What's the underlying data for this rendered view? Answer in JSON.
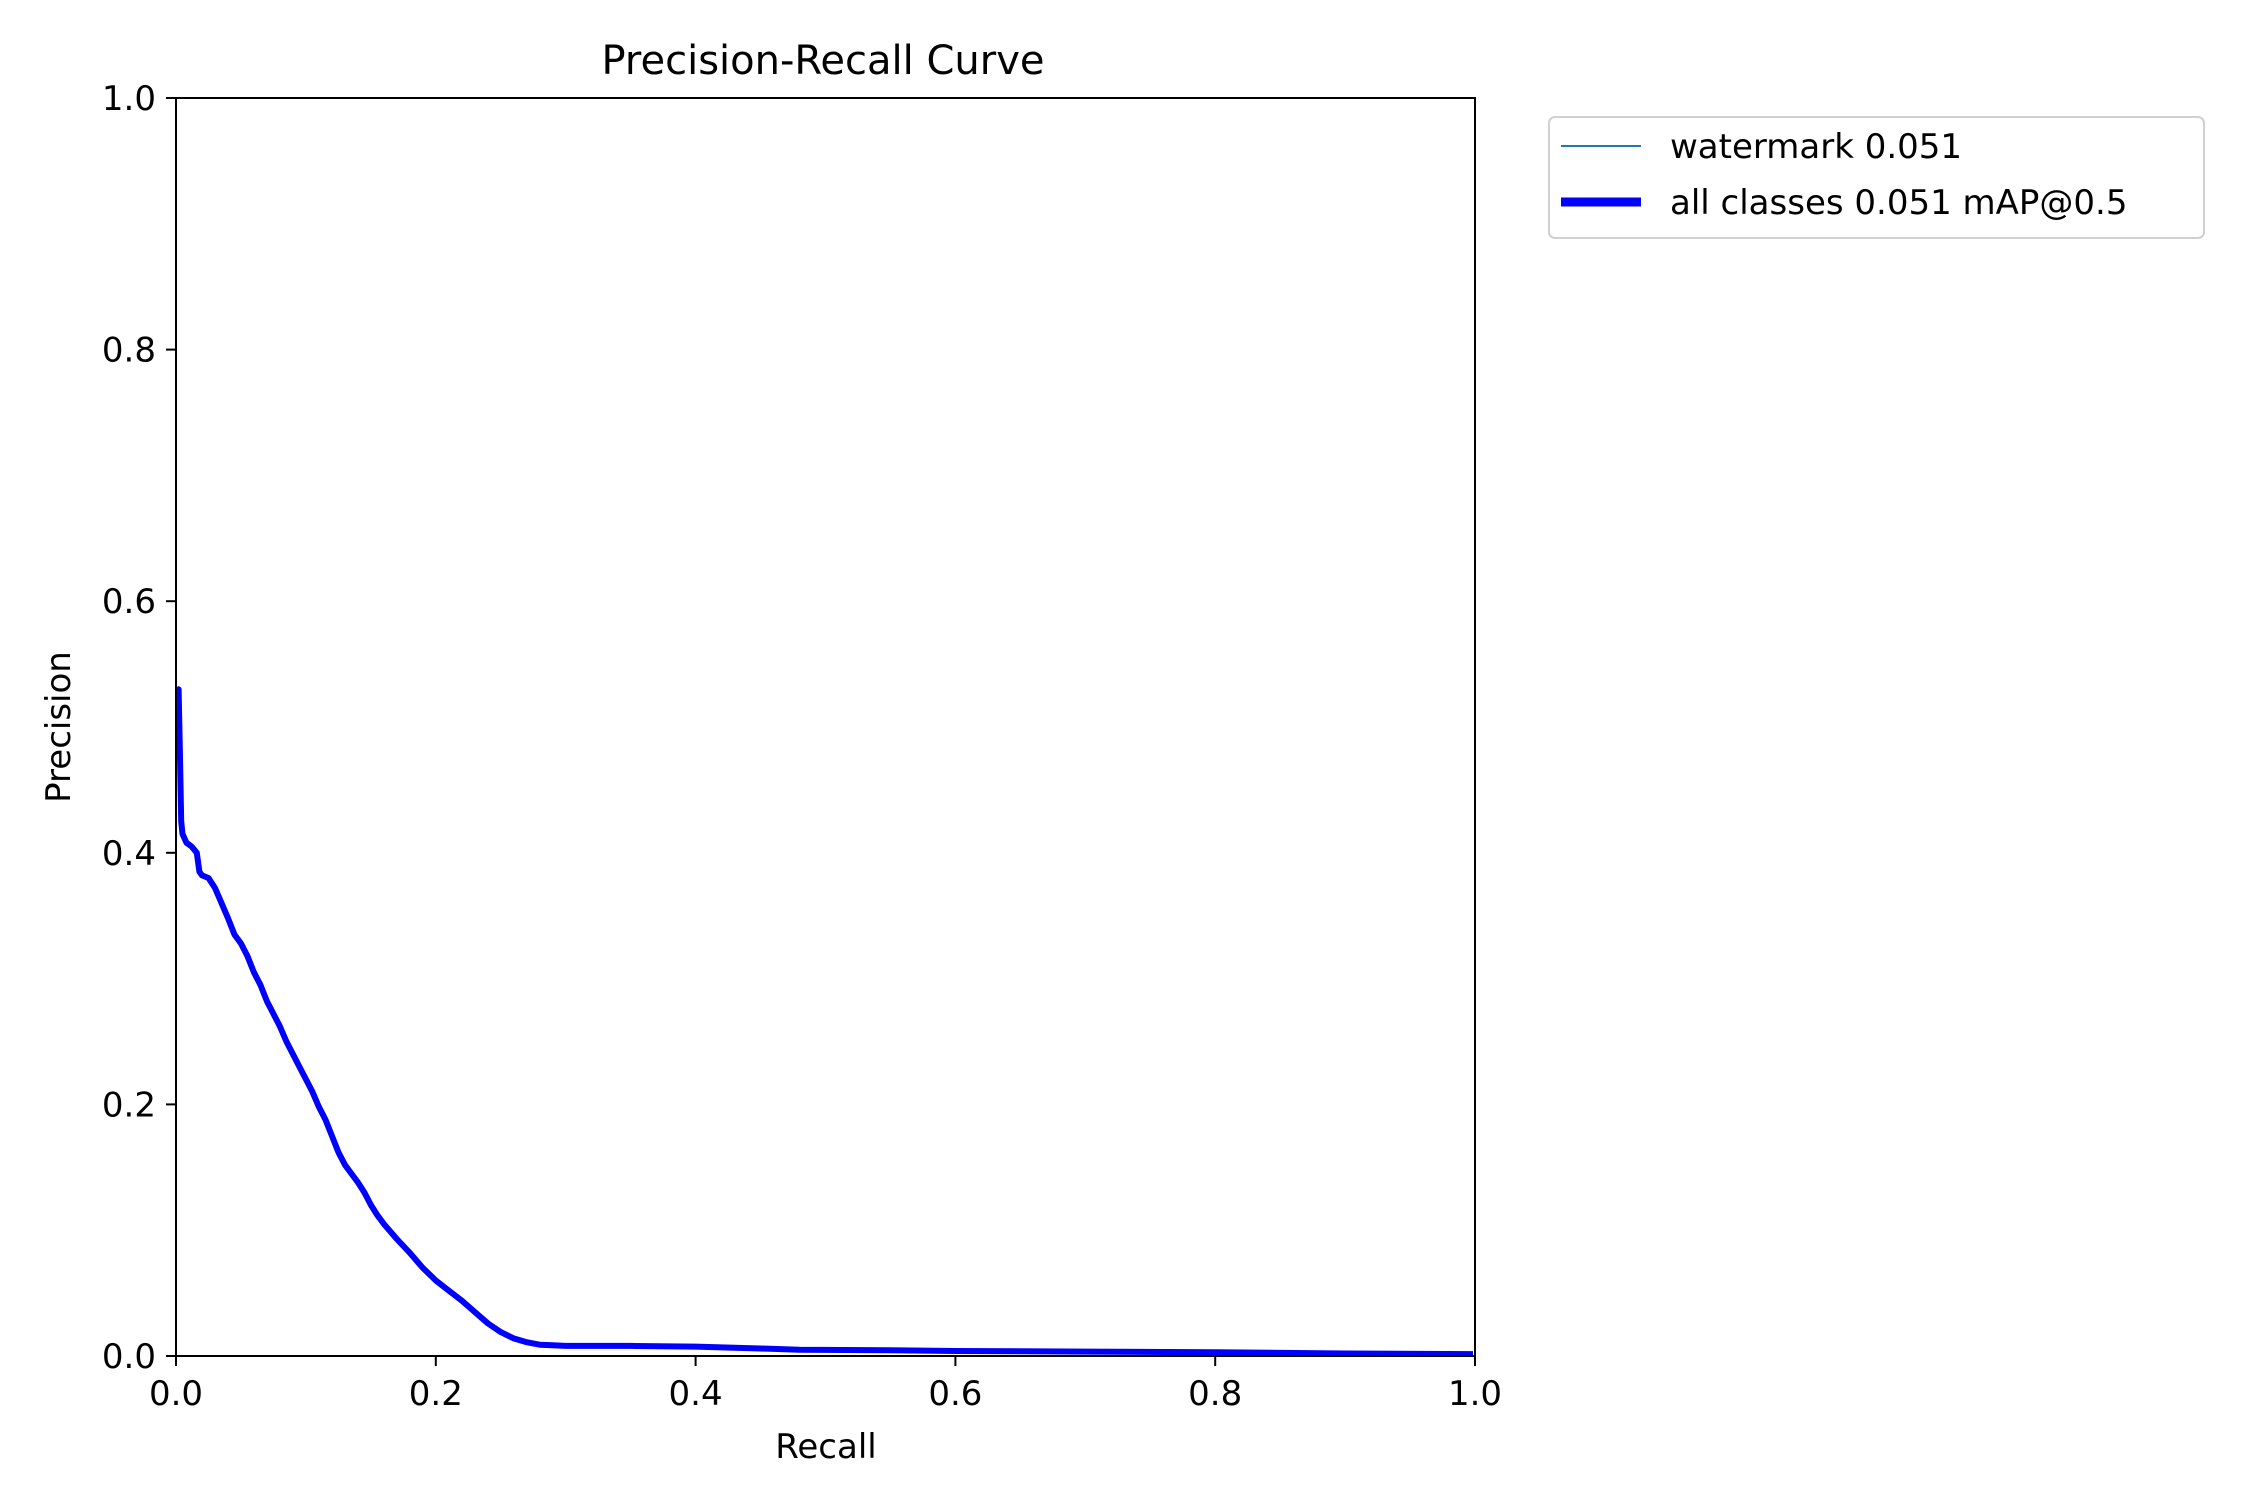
{
  "chart_data": {
    "type": "line",
    "title": "Precision-Recall Curve",
    "xlabel": "Recall",
    "ylabel": "Precision",
    "xlim": [
      0,
      1
    ],
    "ylim": [
      0,
      1
    ],
    "xticks": [
      "0.0",
      "0.2",
      "0.4",
      "0.6",
      "0.8",
      "1.0"
    ],
    "yticks": [
      "0.0",
      "0.2",
      "0.4",
      "0.6",
      "0.8",
      "1.0"
    ],
    "grid": false,
    "legend_position": "outside-top-right",
    "series": [
      {
        "name": "watermark 0.051",
        "color": "#1f77b4",
        "line_style": "thin",
        "x": [
          0.002,
          0.003,
          0.004,
          0.005,
          0.008,
          0.012,
          0.016,
          0.018,
          0.02,
          0.025,
          0.03,
          0.035,
          0.04,
          0.045,
          0.05,
          0.055,
          0.06,
          0.065,
          0.07,
          0.075,
          0.08,
          0.085,
          0.09,
          0.095,
          0.1,
          0.105,
          0.11,
          0.115,
          0.12,
          0.125,
          0.13,
          0.135,
          0.14,
          0.145,
          0.15,
          0.155,
          0.16,
          0.17,
          0.18,
          0.19,
          0.2,
          0.21,
          0.22,
          0.23,
          0.24,
          0.25,
          0.26,
          0.27,
          0.28,
          0.29,
          0.3,
          0.32,
          0.35,
          0.4,
          0.45,
          0.48,
          0.55,
          0.6,
          0.7,
          0.8,
          0.9,
          1.0
        ],
        "y": [
          0.53,
          0.48,
          0.425,
          0.415,
          0.408,
          0.405,
          0.4,
          0.385,
          0.382,
          0.38,
          0.372,
          0.36,
          0.348,
          0.335,
          0.328,
          0.318,
          0.305,
          0.295,
          0.282,
          0.272,
          0.262,
          0.25,
          0.24,
          0.23,
          0.22,
          0.21,
          0.198,
          0.188,
          0.175,
          0.162,
          0.152,
          0.145,
          0.138,
          0.13,
          0.12,
          0.112,
          0.105,
          0.093,
          0.082,
          0.07,
          0.06,
          0.052,
          0.044,
          0.035,
          0.026,
          0.019,
          0.014,
          0.011,
          0.009,
          0.0085,
          0.008,
          0.008,
          0.008,
          0.0075,
          0.006,
          0.005,
          0.0045,
          0.004,
          0.0035,
          0.003,
          0.002,
          0.0015
        ]
      },
      {
        "name": "all classes 0.051 mAP@0.5",
        "color": "#0000ff",
        "line_style": "thick",
        "x": [
          0.002,
          0.003,
          0.004,
          0.005,
          0.008,
          0.012,
          0.016,
          0.018,
          0.02,
          0.025,
          0.03,
          0.035,
          0.04,
          0.045,
          0.05,
          0.055,
          0.06,
          0.065,
          0.07,
          0.075,
          0.08,
          0.085,
          0.09,
          0.095,
          0.1,
          0.105,
          0.11,
          0.115,
          0.12,
          0.125,
          0.13,
          0.135,
          0.14,
          0.145,
          0.15,
          0.155,
          0.16,
          0.17,
          0.18,
          0.19,
          0.2,
          0.21,
          0.22,
          0.23,
          0.24,
          0.25,
          0.26,
          0.27,
          0.28,
          0.29,
          0.3,
          0.32,
          0.35,
          0.4,
          0.45,
          0.48,
          0.55,
          0.6,
          0.7,
          0.8,
          0.9,
          1.0
        ],
        "y": [
          0.53,
          0.48,
          0.425,
          0.415,
          0.408,
          0.405,
          0.4,
          0.385,
          0.382,
          0.38,
          0.372,
          0.36,
          0.348,
          0.335,
          0.328,
          0.318,
          0.305,
          0.295,
          0.282,
          0.272,
          0.262,
          0.25,
          0.24,
          0.23,
          0.22,
          0.21,
          0.198,
          0.188,
          0.175,
          0.162,
          0.152,
          0.145,
          0.138,
          0.13,
          0.12,
          0.112,
          0.105,
          0.093,
          0.082,
          0.07,
          0.06,
          0.052,
          0.044,
          0.035,
          0.026,
          0.019,
          0.014,
          0.011,
          0.009,
          0.0085,
          0.008,
          0.008,
          0.008,
          0.0075,
          0.006,
          0.005,
          0.0045,
          0.004,
          0.0035,
          0.003,
          0.002,
          0.0015
        ]
      }
    ]
  }
}
